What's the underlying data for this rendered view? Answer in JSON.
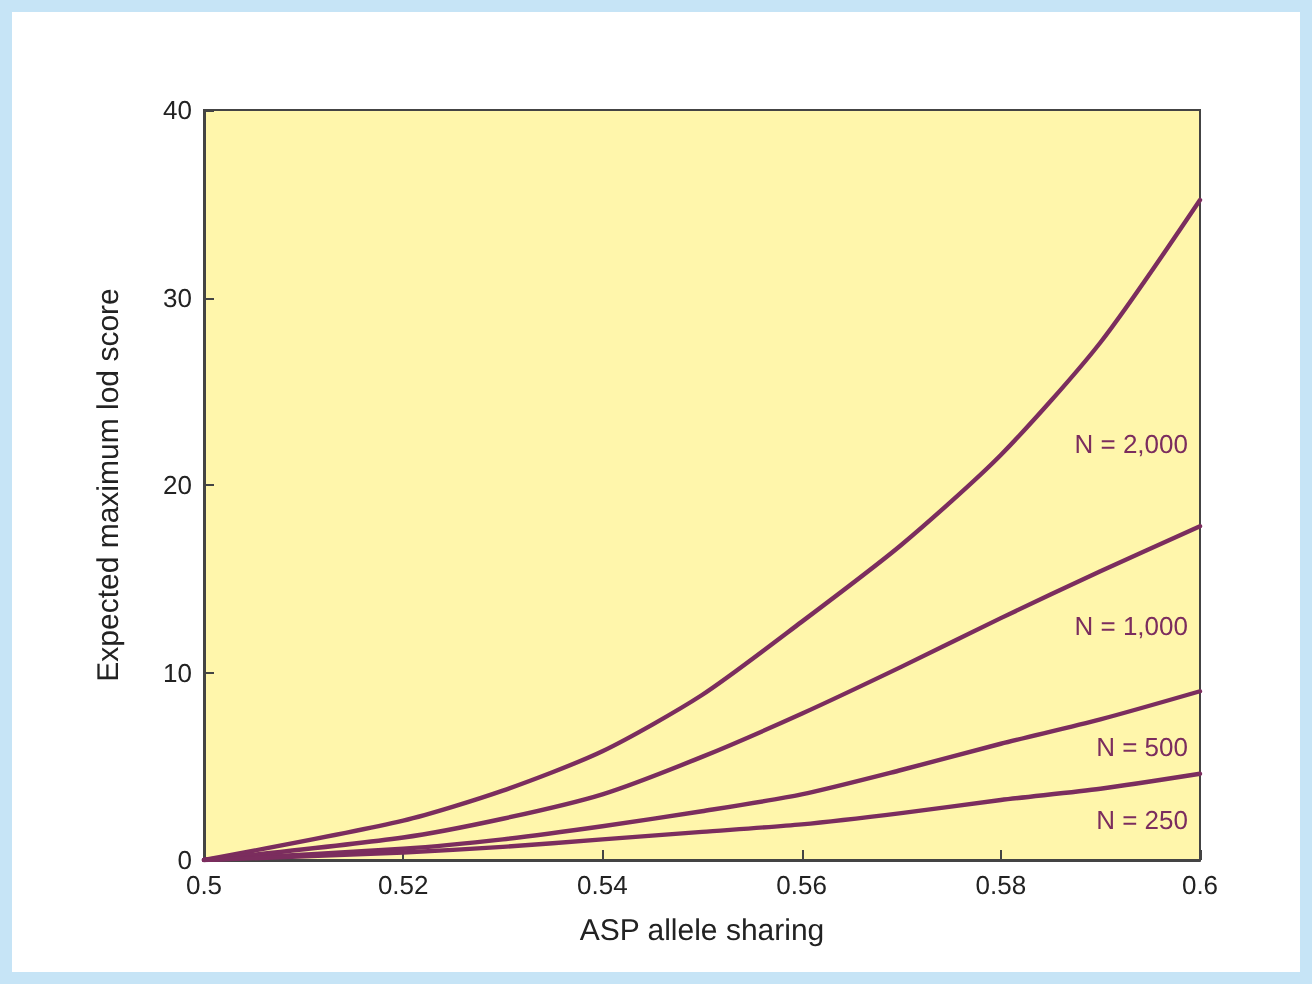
{
  "chart_data": {
    "type": "line",
    "xlabel": "ASP allele sharing",
    "ylabel": "Expected maximum lod score",
    "x": [
      0.5,
      0.52,
      0.53,
      0.54,
      0.55,
      0.56,
      0.57,
      0.58,
      0.59,
      0.6
    ],
    "series": [
      {
        "name": "N = 2,000",
        "color": "#7b2d5e",
        "values": [
          0,
          2.1,
          3.7,
          5.8,
          8.8,
          12.7,
          16.8,
          21.6,
          27.6,
          35.2
        ]
      },
      {
        "name": "N = 1,000",
        "color": "#7b2d5e",
        "values": [
          0,
          1.2,
          2.2,
          3.5,
          5.5,
          7.8,
          10.3,
          12.9,
          15.4,
          17.8
        ]
      },
      {
        "name": "N = 500",
        "color": "#7b2d5e",
        "values": [
          0,
          0.6,
          1.1,
          1.8,
          2.6,
          3.5,
          4.8,
          6.2,
          7.5,
          9.0
        ]
      },
      {
        "name": "N = 250",
        "color": "#7b2d5e",
        "values": [
          0,
          0.4,
          0.7,
          1.1,
          1.5,
          1.9,
          2.5,
          3.2,
          3.8,
          4.6
        ]
      }
    ],
    "xlim": [
      0.5,
      0.6
    ],
    "xticks": [
      0.5,
      0.52,
      0.54,
      0.56,
      0.58,
      0.6
    ],
    "ylim": [
      0,
      40
    ],
    "yticks": [
      0,
      10,
      20,
      30,
      40
    ],
    "grid": false,
    "legend": false,
    "marker": "none",
    "line_style": "solid"
  }
}
